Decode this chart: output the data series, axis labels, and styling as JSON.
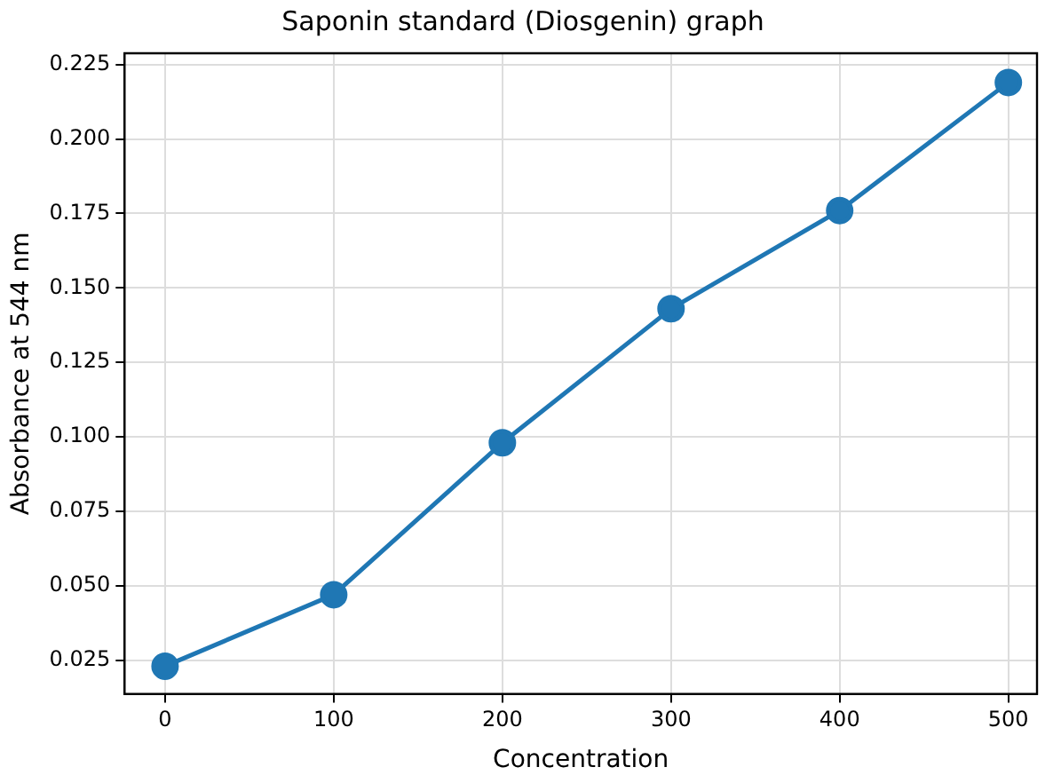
{
  "chart_data": {
    "type": "line",
    "title": "Saponin standard (Diosgenin) graph",
    "xlabel": "Concentration",
    "ylabel": "Absorbance at 544 nm",
    "x": [
      0,
      100,
      200,
      300,
      400,
      500
    ],
    "series": [
      {
        "color": "#1f77b4",
        "values": [
          0.023,
          0.047,
          0.098,
          0.143,
          0.176,
          0.219
        ]
      }
    ],
    "xlim": [
      -24,
      517
    ],
    "xticks": [
      0,
      100,
      200,
      300,
      400,
      500
    ],
    "ylim": [
      0.0137,
      0.2288
    ],
    "yticks": [
      0.025,
      {
        "value": 0.05,
        "label": "0.050"
      },
      0.075,
      {
        "value": 0.1,
        "label": "0.100"
      },
      0.125,
      {
        "value": 0.15,
        "label": "0.150"
      },
      0.175,
      {
        "value": 0.2,
        "label": "0.200"
      },
      0.225
    ],
    "grid": true,
    "legend": false,
    "marker": "circle",
    "line_style": "solid"
  }
}
